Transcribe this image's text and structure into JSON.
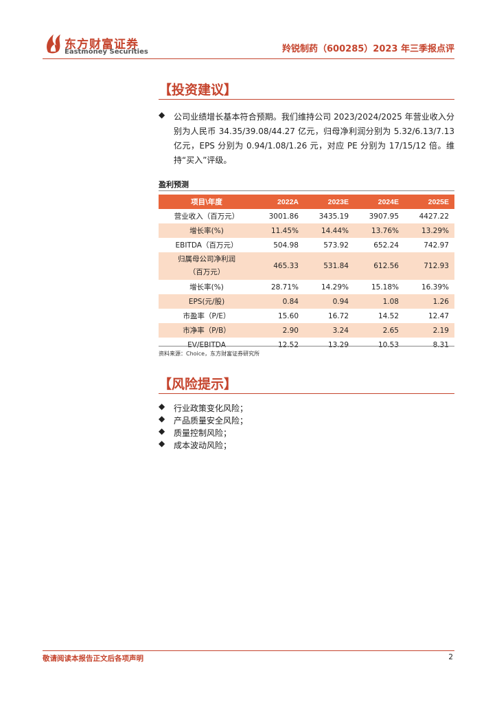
{
  "header": {
    "logo_cn": "东方财富证券",
    "logo_en": "Eastmoney Securities",
    "report_title": "羚锐制药（600285）2023 年三季报点评"
  },
  "invest": {
    "title": "【投资建议】",
    "text": "公司业绩增长基本符合预期。我们维持公司 2023/2024/2025 年营业收入分别为人民币 34.35/39.08/44.27 亿元，归母净利润分别为 5.32/6.13/7.13 亿元，EPS 分别为 0.94/1.08/1.26 元，对应 PE 分别为 17/15/12 倍。维持“买入”评级。"
  },
  "forecast": {
    "caption": "盈利预测",
    "headers": [
      "项目\\年度",
      "2022A",
      "2023E",
      "2024E",
      "2025E"
    ],
    "rows": [
      {
        "label": "营业收入（百万元）",
        "values": [
          "3001.86",
          "3435.19",
          "3907.95",
          "4427.22"
        ]
      },
      {
        "label": "增长率(%)",
        "values": [
          "11.45%",
          "14.44%",
          "13.76%",
          "13.29%"
        ]
      },
      {
        "label": "EBITDA（百万元）",
        "values": [
          "504.98",
          "573.92",
          "652.24",
          "742.97"
        ]
      },
      {
        "label_line1": "归属母公司净利润",
        "label_line2": "（百万元）",
        "values": [
          "465.33",
          "531.84",
          "612.56",
          "712.93"
        ]
      },
      {
        "label": "增长率(%)",
        "values": [
          "28.71%",
          "14.29%",
          "15.18%",
          "16.39%"
        ]
      },
      {
        "label": "EPS(元/股)",
        "values": [
          "0.84",
          "0.94",
          "1.08",
          "1.26"
        ]
      },
      {
        "label": "市盈率（P/E）",
        "values": [
          "15.60",
          "16.72",
          "14.52",
          "12.47"
        ]
      },
      {
        "label": "市净率（P/B）",
        "values": [
          "2.90",
          "3.24",
          "2.65",
          "2.19"
        ]
      },
      {
        "label": "EV/EBITDA",
        "values": [
          "12.52",
          "13.29",
          "10.53",
          "8.31"
        ]
      }
    ],
    "source": "资料来源：Choice，东方财富证券研究所"
  },
  "risk": {
    "title": "【风险提示】",
    "items": [
      "行业政策变化风险；",
      "产品质量安全风险；",
      "质量控制风险；",
      "成本波动风险；"
    ]
  },
  "bullet_symbol": "◆",
  "footer": {
    "disclaimer": "敬请阅读本报告正文后各项声明",
    "page": "2"
  },
  "colors": {
    "brand": "#c5442d",
    "table_header": "#e8643a",
    "row_shade": "#fbdcc7"
  }
}
